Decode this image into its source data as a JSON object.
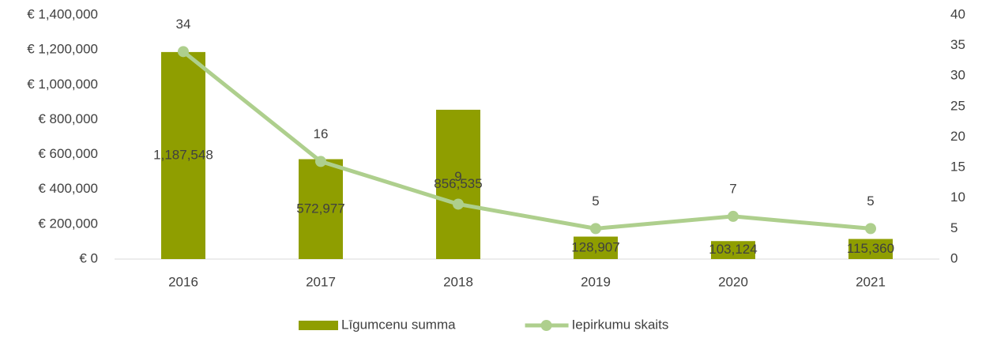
{
  "chart_data": {
    "type": "bar",
    "categories": [
      "2016",
      "2017",
      "2018",
      "2019",
      "2020",
      "2021"
    ],
    "series": [
      {
        "name": "Līgumcenu summa",
        "type": "bar",
        "color": "#8f9e00",
        "values": [
          1187548,
          572977,
          856535,
          128907,
          103124,
          115360
        ],
        "value_labels": [
          "1,187,548",
          "572,977",
          "856,535",
          "128,907",
          "103,124",
          "115,360"
        ]
      },
      {
        "name": "Iepirkumu skaits",
        "type": "line",
        "axis": "y2",
        "color": "#aecf8d",
        "values": [
          34,
          16,
          9,
          5,
          7,
          5
        ]
      }
    ],
    "ylim": [
      0,
      1400000
    ],
    "yticks": [
      {
        "value": 0,
        "label": "€ 0"
      },
      {
        "value": 200000,
        "label": "€ 200,000"
      },
      {
        "value": 400000,
        "label": "€ 400,000"
      },
      {
        "value": 600000,
        "label": "€ 600,000"
      },
      {
        "value": 800000,
        "label": "€ 800,000"
      },
      {
        "value": 1000000,
        "label": "€ 1,000,000"
      },
      {
        "value": 1200000,
        "label": "€ 1,200,000"
      },
      {
        "value": 1400000,
        "label": "€ 1,400,000"
      }
    ],
    "y2lim": [
      0,
      40
    ],
    "y2ticks": [
      0,
      5,
      10,
      15,
      20,
      25,
      30,
      35,
      40
    ],
    "grid": false,
    "legend": "bottom"
  }
}
